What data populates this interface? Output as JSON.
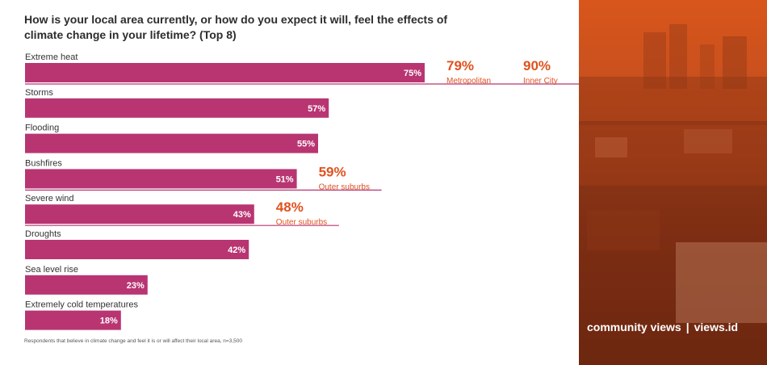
{
  "title": "How is your local area currently, or how do you expect it will, feel the effects of climate change in your lifetime? (Top 8)",
  "footnote": "Respondents that believe in climate change and feel it is or will affect their local area, n=3,500",
  "brand": {
    "left": "community views",
    "separator": "|",
    "right": "views.id"
  },
  "colors": {
    "bar": "#b83572",
    "label": "#ffffff",
    "callout": "#e0521e",
    "panel": "#c9501e"
  },
  "chart_data": {
    "type": "bar",
    "orientation": "horizontal",
    "title": "How is your local area currently, or how do you expect it will, feel the effects of climate change in your lifetime? (Top 8)",
    "categories": [
      "Extreme heat",
      "Storms",
      "Flooding",
      "Bushfires",
      "Severe wind",
      "Droughts",
      "Sea level rise",
      "Extremely cold temperatures"
    ],
    "values": [
      75,
      57,
      55,
      51,
      43,
      42,
      23,
      18
    ],
    "value_labels": [
      "75%",
      "57%",
      "55%",
      "51%",
      "43%",
      "42%",
      "23%",
      "18%"
    ],
    "xlim": [
      0,
      100
    ],
    "grid": false,
    "annotations": [
      {
        "category": "Extreme heat",
        "value": "79%",
        "label": "Metropolitan"
      },
      {
        "category": "Extreme heat",
        "value": "90%",
        "label": "Inner City"
      },
      {
        "category": "Bushfires",
        "value": "59%",
        "label": "Outer suburbs"
      },
      {
        "category": "Severe wind",
        "value": "48%",
        "label": "Outer suburbs"
      }
    ]
  }
}
